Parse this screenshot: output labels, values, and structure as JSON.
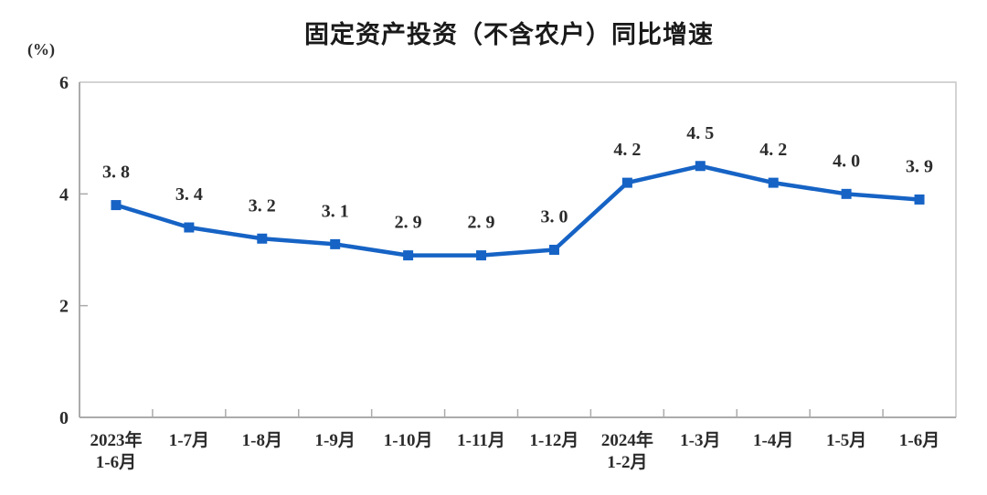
{
  "chart_data": {
    "type": "line",
    "title": "固定资产投资（不含农户）同比增速",
    "ylabel": "(%)",
    "xlabel": "",
    "ylim": [
      0,
      6
    ],
    "yticks": [
      0,
      2,
      4,
      6
    ],
    "grid": false,
    "legend": null,
    "categories": [
      [
        "2023年",
        "1-6月"
      ],
      [
        "1-7月"
      ],
      [
        "1-8月"
      ],
      [
        "1-9月"
      ],
      [
        "1-10月"
      ],
      [
        "1-11月"
      ],
      [
        "1-12月"
      ],
      [
        "2024年",
        "1-2月"
      ],
      [
        "1-3月"
      ],
      [
        "1-4月"
      ],
      [
        "1-5月"
      ],
      [
        "1-6月"
      ]
    ],
    "values": [
      3.8,
      3.4,
      3.2,
      3.1,
      2.9,
      2.9,
      3.0,
      4.2,
      4.5,
      4.2,
      4.0,
      3.9
    ],
    "point_labels": [
      "3. 8",
      "3. 4",
      "3. 2",
      "3. 1",
      "2. 9",
      "2. 9",
      "3. 0",
      "4. 2",
      "4. 5",
      "4. 2",
      "4. 0",
      "3. 9"
    ],
    "colors": {
      "line": "#1663C5",
      "marker": "#1663C5",
      "axis": "#ABABAB",
      "frame": "#C6C6C6",
      "title_text": "#1A1A1A",
      "label_text": "#3C3C3C"
    }
  }
}
